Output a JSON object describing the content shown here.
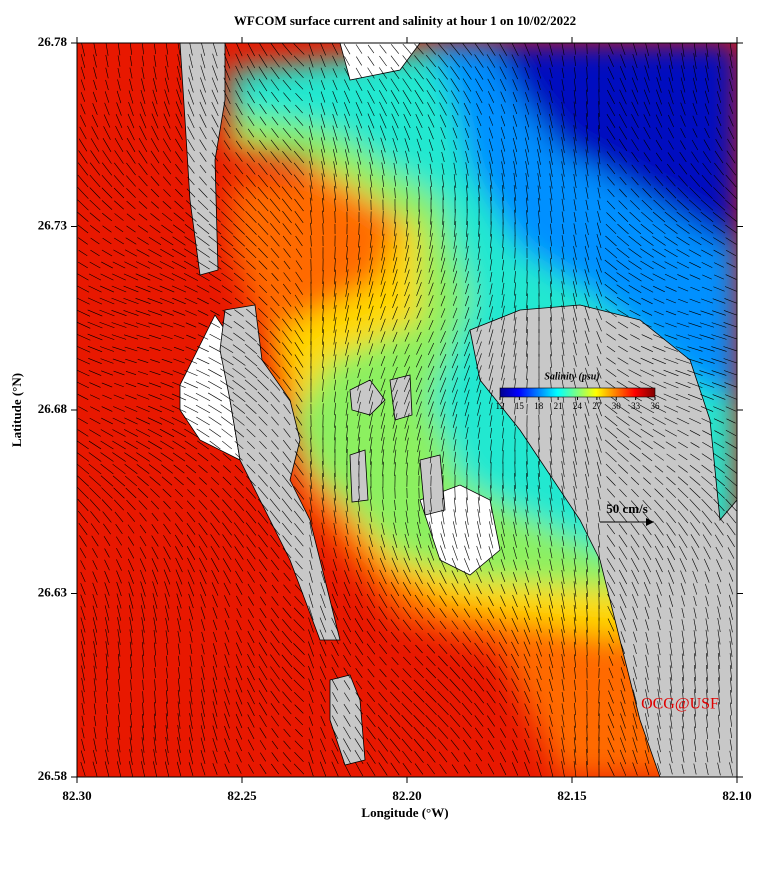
{
  "chart_data": {
    "type": "map",
    "title": "WFCOM surface current and salinity at hour 1 on 10/02/2022",
    "x_label": "Longitude (°W)",
    "y_label": "Latitude (°N)",
    "xlim": [
      82.3,
      82.1
    ],
    "xticks": [
      {
        "value": 82.3,
        "label": "82.30"
      },
      {
        "value": 82.25,
        "label": "82.25"
      },
      {
        "value": 82.2,
        "label": "82.20"
      },
      {
        "value": 82.15,
        "label": "82.15"
      },
      {
        "value": 82.1,
        "label": "82.10"
      }
    ],
    "ylim": [
      26.58,
      26.78
    ],
    "yticks": [
      26.58,
      26.63,
      26.68,
      26.73,
      26.78
    ],
    "colorbar": {
      "label": "Salinity (psu)",
      "lim": [
        12,
        36
      ],
      "ticks": [
        12,
        15,
        18,
        21,
        24,
        27,
        30,
        33,
        36
      ]
    },
    "scale_arrow_label": "50 cm/s",
    "credit": "OCG@USF"
  }
}
